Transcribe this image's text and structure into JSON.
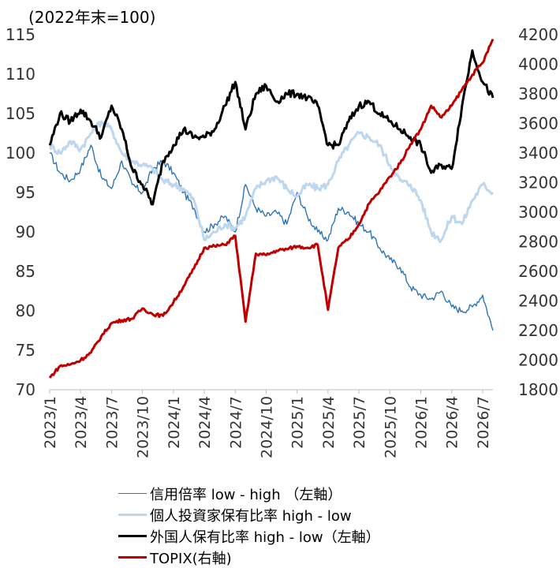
{
  "chart_data": {
    "type": "line",
    "title": "",
    "unit_label": "(2022年末=100)",
    "xlabel": "",
    "ylabel": "",
    "y_left": {
      "lim": [
        70,
        115
      ],
      "ticks": [
        "70",
        "75",
        "80",
        "85",
        "90",
        "95",
        "100",
        "105",
        "110",
        "115"
      ]
    },
    "y_right": {
      "lim": [
        1800,
        4200
      ],
      "ticks": [
        "1800",
        "2000",
        "2200",
        "2400",
        "2600",
        "2800",
        "3000",
        "3200",
        "3400",
        "3600",
        "3800",
        "4000",
        "4200"
      ]
    },
    "x_ticks": [
      "2023/1",
      "2023/4",
      "2023/7",
      "2023/10",
      "2024/1",
      "2024/4",
      "2024/7",
      "2024/10",
      "2025/1",
      "2025/4",
      "2025/7",
      "2025/10",
      "2026/1",
      "2026/4",
      "2026/7"
    ],
    "x_months": [
      "2023-01",
      "2023-04",
      "2023-07",
      "2023-10",
      "2024-01",
      "2024-04",
      "2024-07",
      "2024-10",
      "2025-01",
      "2025-04",
      "2025-07",
      "2025-10",
      "2026-01",
      "2026-04",
      "2026-07",
      "2026-08"
    ],
    "grid": false,
    "legend_position": "bottom",
    "series": [
      {
        "name": "信用倍率 low - high （左軸）",
        "axis": "left",
        "color": "#2e75b6",
        "width": 1.4,
        "points": [
          [
            "2023-01",
            100
          ],
          [
            "2023-02",
            97.5
          ],
          [
            "2023-03",
            96.5
          ],
          [
            "2023-04",
            98
          ],
          [
            "2023-05",
            101
          ],
          [
            "2023-06",
            97
          ],
          [
            "2023-07",
            95.5
          ],
          [
            "2023-08",
            99
          ],
          [
            "2023-09",
            96
          ],
          [
            "2023-10",
            95
          ],
          [
            "2023-11",
            98
          ],
          [
            "2023-12",
            99
          ],
          [
            "2024-01",
            97.5
          ],
          [
            "2024-02",
            95
          ],
          [
            "2024-03",
            93
          ],
          [
            "2024-04",
            90
          ],
          [
            "2024-05",
            91
          ],
          [
            "2024-06",
            92
          ],
          [
            "2024-07",
            90
          ],
          [
            "2024-08",
            96
          ],
          [
            "2024-09",
            93
          ],
          [
            "2024-10",
            92
          ],
          [
            "2024-11",
            92.5
          ],
          [
            "2024-12",
            91
          ],
          [
            "2025-01",
            95
          ],
          [
            "2025-02",
            92
          ],
          [
            "2025-03",
            90
          ],
          [
            "2025-04",
            89
          ],
          [
            "2025-05",
            93
          ],
          [
            "2025-06",
            92.5
          ],
          [
            "2025-07",
            91
          ],
          [
            "2025-08",
            90
          ],
          [
            "2025-09",
            88
          ],
          [
            "2025-10",
            86.5
          ],
          [
            "2025-11",
            85.5
          ],
          [
            "2025-12",
            83
          ],
          [
            "2026-01",
            82
          ],
          [
            "2026-02",
            81.5
          ],
          [
            "2026-03",
            82.5
          ],
          [
            "2026-04",
            80.5
          ],
          [
            "2026-05",
            80
          ],
          [
            "2026-06",
            80.5
          ],
          [
            "2026-07",
            82
          ],
          [
            "2026-08",
            77.5
          ]
        ]
      },
      {
        "name": "個人投資家保有比率 high - low",
        "axis": "left",
        "color": "#bdd7ee",
        "width": 3,
        "points": [
          [
            "2023-01",
            101
          ],
          [
            "2023-02",
            100
          ],
          [
            "2023-03",
            101.5
          ],
          [
            "2023-04",
            100.5
          ],
          [
            "2023-05",
            102.5
          ],
          [
            "2023-06",
            104
          ],
          [
            "2023-07",
            103
          ],
          [
            "2023-08",
            100
          ],
          [
            "2023-09",
            99
          ],
          [
            "2023-10",
            98.5
          ],
          [
            "2023-11",
            98
          ],
          [
            "2023-12",
            96.5
          ],
          [
            "2024-01",
            96
          ],
          [
            "2024-02",
            95.5
          ],
          [
            "2024-03",
            94
          ],
          [
            "2024-04",
            89
          ],
          [
            "2024-05",
            90
          ],
          [
            "2024-06",
            91
          ],
          [
            "2024-07",
            90.5
          ],
          [
            "2024-08",
            92
          ],
          [
            "2024-09",
            95.5
          ],
          [
            "2024-10",
            96.5
          ],
          [
            "2024-11",
            97
          ],
          [
            "2024-12",
            95.5
          ],
          [
            "2025-01",
            94.5
          ],
          [
            "2025-02",
            96
          ],
          [
            "2025-03",
            95.5
          ],
          [
            "2025-04",
            96
          ],
          [
            "2025-05",
            99
          ],
          [
            "2025-06",
            101
          ],
          [
            "2025-07",
            102.5
          ],
          [
            "2025-08",
            102
          ],
          [
            "2025-09",
            101
          ],
          [
            "2025-10",
            98.5
          ],
          [
            "2025-11",
            96.5
          ],
          [
            "2025-12",
            96
          ],
          [
            "2026-01",
            94
          ],
          [
            "2026-02",
            90
          ],
          [
            "2026-03",
            89
          ],
          [
            "2026-04",
            92
          ],
          [
            "2026-05",
            91
          ],
          [
            "2026-06",
            94
          ],
          [
            "2026-07",
            96
          ],
          [
            "2026-08",
            95
          ]
        ]
      },
      {
        "name": "外国人保有比率 high - low（左軸）",
        "axis": "left",
        "color": "#000000",
        "width": 3,
        "points": [
          [
            "2023-01",
            101
          ],
          [
            "2023-02",
            105
          ],
          [
            "2023-03",
            104
          ],
          [
            "2023-04",
            105.5
          ],
          [
            "2023-05",
            104
          ],
          [
            "2023-06",
            102
          ],
          [
            "2023-07",
            106
          ],
          [
            "2023-08",
            103
          ],
          [
            "2023-09",
            98
          ],
          [
            "2023-10",
            96
          ],
          [
            "2023-11",
            93.5
          ],
          [
            "2023-12",
            99
          ],
          [
            "2024-01",
            101
          ],
          [
            "2024-02",
            103
          ],
          [
            "2024-03",
            102
          ],
          [
            "2024-04",
            102
          ],
          [
            "2024-05",
            103
          ],
          [
            "2024-06",
            106
          ],
          [
            "2024-07",
            109
          ],
          [
            "2024-08",
            103
          ],
          [
            "2024-09",
            107.5
          ],
          [
            "2024-10",
            108.5
          ],
          [
            "2024-11",
            106.5
          ],
          [
            "2024-12",
            107.5
          ],
          [
            "2025-01",
            107.5
          ],
          [
            "2025-02",
            107
          ],
          [
            "2025-03",
            106
          ],
          [
            "2025-04",
            101
          ],
          [
            "2025-05",
            101
          ],
          [
            "2025-06",
            104
          ],
          [
            "2025-07",
            106
          ],
          [
            "2025-08",
            106.5
          ],
          [
            "2025-09",
            105
          ],
          [
            "2025-10",
            104
          ],
          [
            "2025-11",
            103
          ],
          [
            "2025-12",
            102
          ],
          [
            "2026-01",
            101
          ],
          [
            "2026-02",
            97.5
          ],
          [
            "2026-03",
            98.5
          ],
          [
            "2026-04",
            98
          ],
          [
            "2026-05",
            106
          ],
          [
            "2026-06",
            113
          ],
          [
            "2026-07",
            109
          ],
          [
            "2026-08",
            107
          ]
        ]
      },
      {
        "name": "TOPIX(右軸)",
        "axis": "right",
        "color": "#c00000",
        "width": 3,
        "points": [
          [
            "2023-01",
            1880
          ],
          [
            "2023-02",
            1960
          ],
          [
            "2023-03",
            1970
          ],
          [
            "2023-04",
            2000
          ],
          [
            "2023-05",
            2050
          ],
          [
            "2023-06",
            2160
          ],
          [
            "2023-07",
            2250
          ],
          [
            "2023-08",
            2270
          ],
          [
            "2023-09",
            2280
          ],
          [
            "2023-10",
            2350
          ],
          [
            "2023-11",
            2310
          ],
          [
            "2023-12",
            2300
          ],
          [
            "2024-01",
            2390
          ],
          [
            "2024-02",
            2500
          ],
          [
            "2024-03",
            2620
          ],
          [
            "2024-04",
            2760
          ],
          [
            "2024-05",
            2770
          ],
          [
            "2024-06",
            2780
          ],
          [
            "2024-07",
            2840
          ],
          [
            "2024-08",
            2260
          ],
          [
            "2024-09",
            2720
          ],
          [
            "2024-10",
            2710
          ],
          [
            "2024-11",
            2740
          ],
          [
            "2024-12",
            2750
          ],
          [
            "2025-01",
            2770
          ],
          [
            "2025-02",
            2760
          ],
          [
            "2025-03",
            2780
          ],
          [
            "2025-04",
            2340
          ],
          [
            "2025-05",
            2760
          ],
          [
            "2025-06",
            2820
          ],
          [
            "2025-07",
            2920
          ],
          [
            "2025-08",
            3060
          ],
          [
            "2025-09",
            3140
          ],
          [
            "2025-10",
            3240
          ],
          [
            "2025-11",
            3330
          ],
          [
            "2025-12",
            3460
          ],
          [
            "2026-01",
            3560
          ],
          [
            "2026-02",
            3720
          ],
          [
            "2026-03",
            3640
          ],
          [
            "2026-04",
            3720
          ],
          [
            "2026-05",
            3830
          ],
          [
            "2026-06",
            3930
          ],
          [
            "2026-07",
            4010
          ],
          [
            "2026-08",
            4170
          ]
        ]
      }
    ]
  }
}
